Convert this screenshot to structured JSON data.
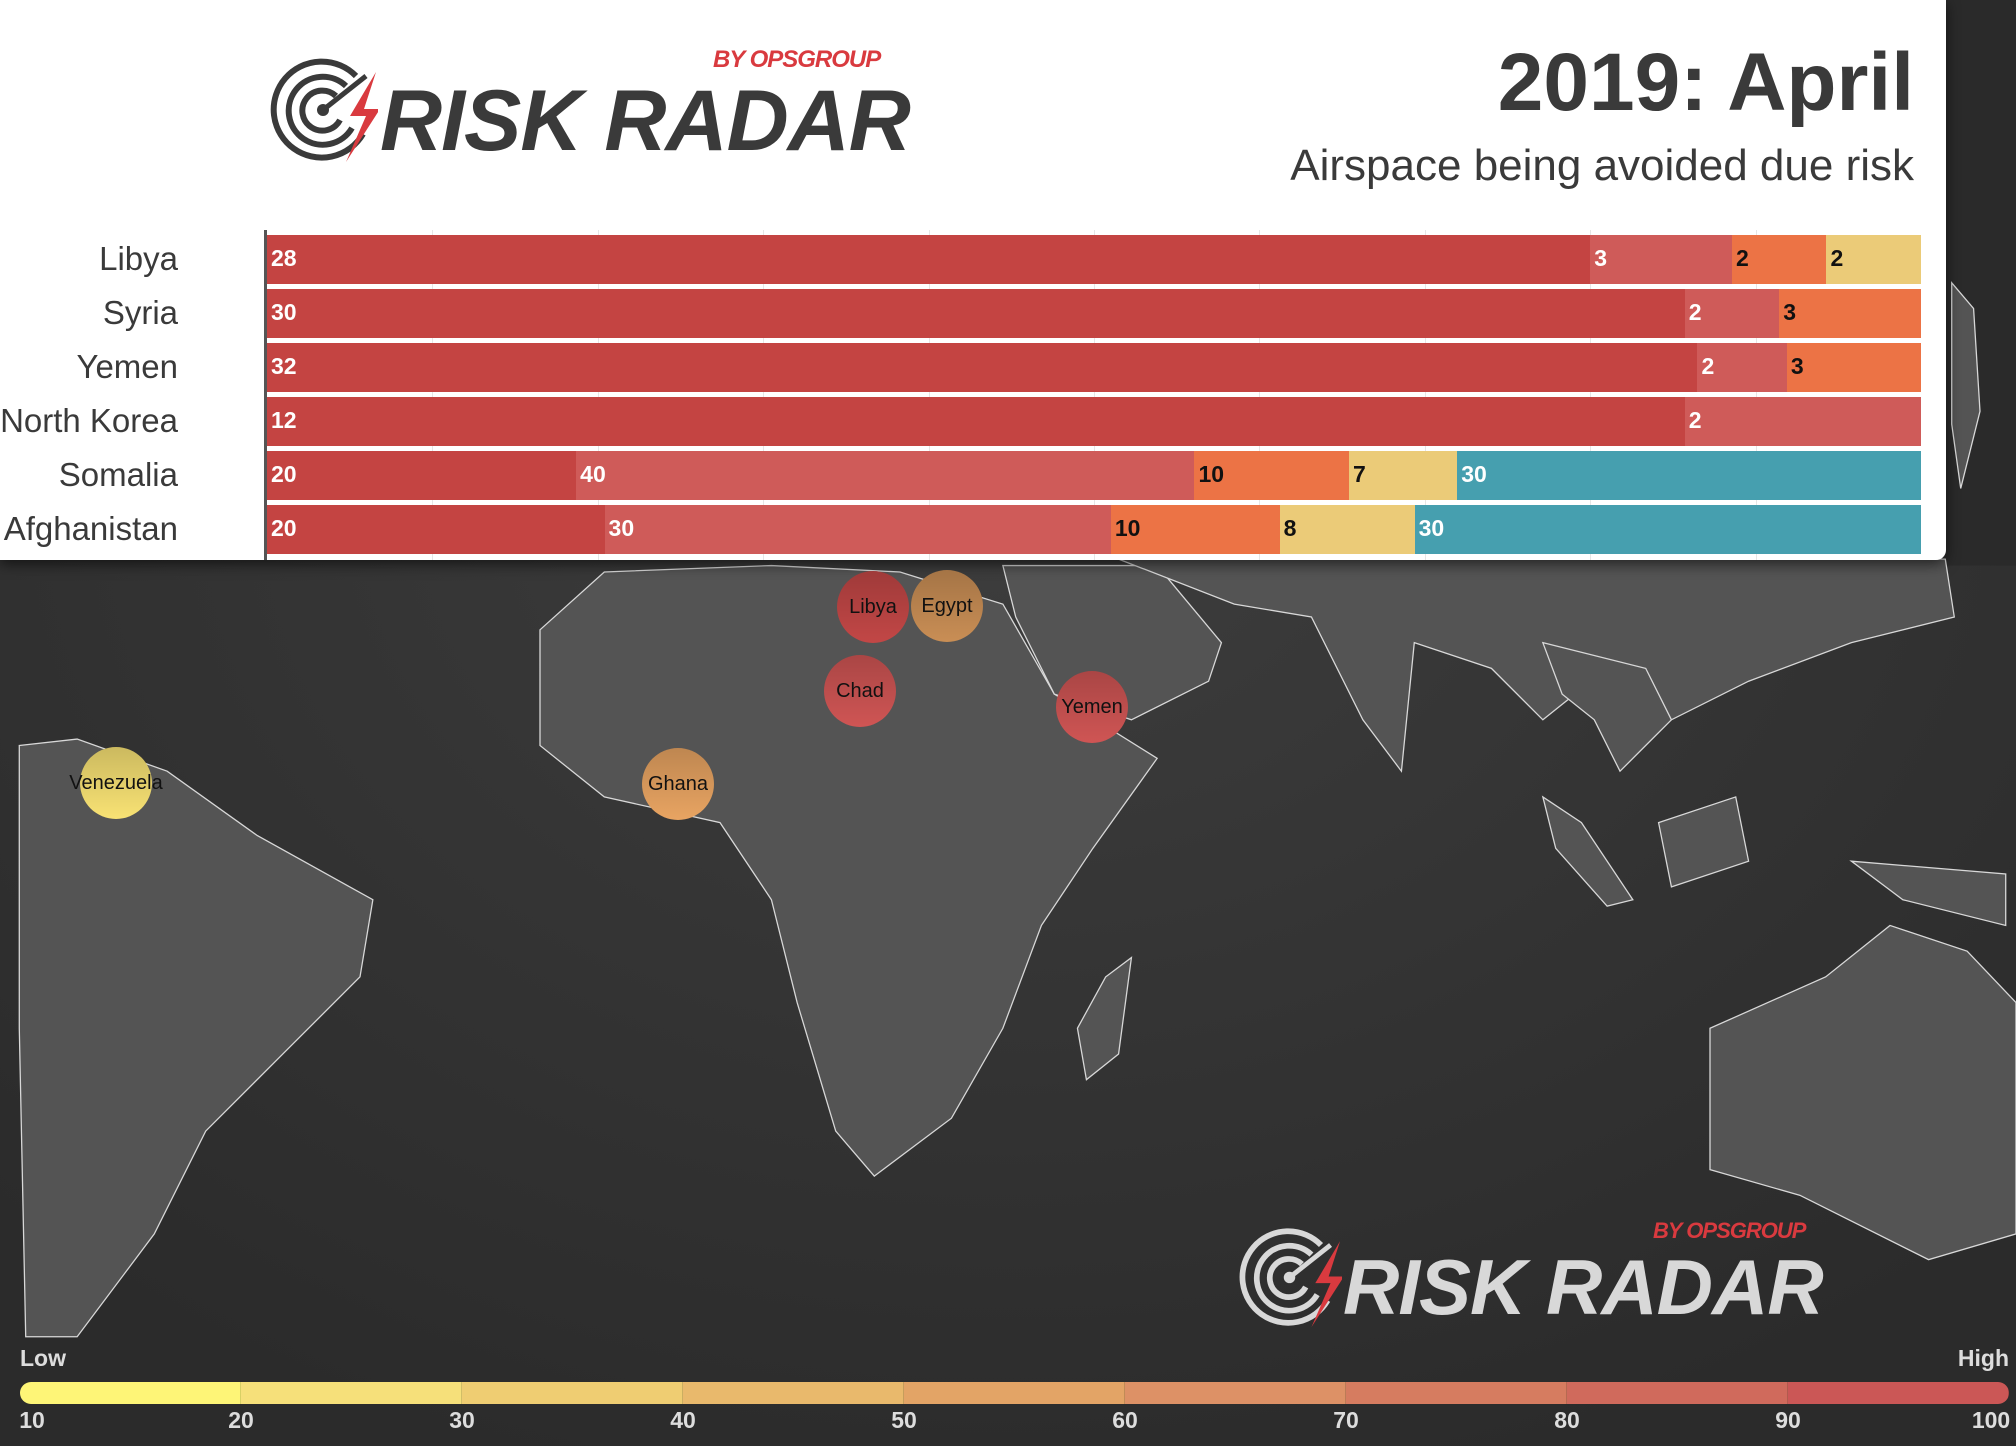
{
  "header": {
    "logo": {
      "main": "RISK RADAR",
      "byline": "BY OPSGROUP"
    },
    "title": "2019: April",
    "subtitle": "Airspace being avoided due risk"
  },
  "chart_data": {
    "type": "bar",
    "orientation": "horizontal",
    "stacked": true,
    "normalized": "100%",
    "categories": [
      "Libya",
      "Syria",
      "Yemen",
      "North Korea",
      "Somalia",
      "Afghanistan"
    ],
    "series_colors": [
      "#c44442",
      "#cf5b59",
      "#ec7345",
      "#ebcb78",
      "#469faf"
    ],
    "rows": [
      {
        "label": "Libya",
        "values": [
          28,
          3,
          2,
          2
        ]
      },
      {
        "label": "Syria",
        "values": [
          30,
          2,
          3
        ]
      },
      {
        "label": "Yemen",
        "values": [
          32,
          2,
          3
        ]
      },
      {
        "label": "North Korea",
        "values": [
          12,
          2
        ]
      },
      {
        "label": "Somalia",
        "values": [
          20,
          40,
          10,
          7,
          30
        ]
      },
      {
        "label": "Afghanistan",
        "values": [
          20,
          30,
          10,
          8,
          30
        ]
      }
    ],
    "grid": true
  },
  "map": {
    "bubbles": [
      {
        "label": "Libya",
        "color": "#c24746"
      },
      {
        "label": "Egypt",
        "color": "#c98e55"
      },
      {
        "label": "Chad",
        "color": "#cf5554"
      },
      {
        "label": "Yemen",
        "color": "#cf5554"
      },
      {
        "label": "Ghana",
        "color": "#e8a462"
      },
      {
        "label": "Venezuela",
        "color": "#f8e274"
      }
    ],
    "watermark": {
      "main": "RISK RADAR",
      "byline": "BY OPSGROUP"
    }
  },
  "legend": {
    "low": "Low",
    "high": "High",
    "ticks": [
      "10",
      "20",
      "30",
      "40",
      "50",
      "60",
      "70",
      "80",
      "90",
      "100"
    ],
    "colors": [
      "#fef577",
      "#f6e07a",
      "#efcd72",
      "#e9b96c",
      "#e3a466",
      "#dd9166",
      "#d67c60",
      "#d06a5c",
      "#cb5756"
    ]
  }
}
